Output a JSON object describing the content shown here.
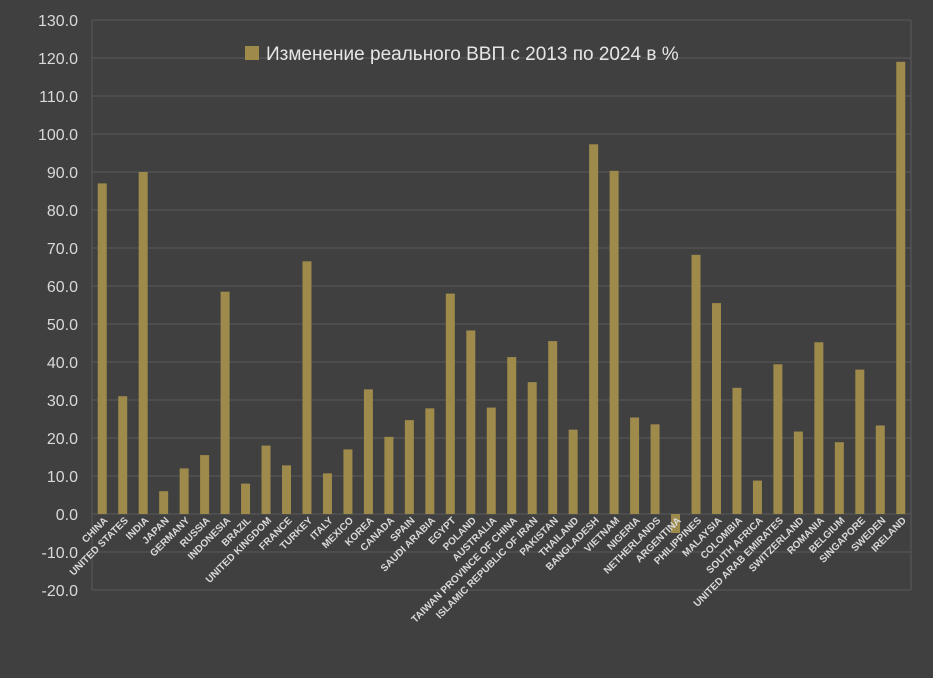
{
  "chart_data": {
    "type": "bar",
    "title": "",
    "xlabel": "",
    "ylabel": "",
    "ylim": [
      -20,
      130
    ],
    "ytick_step": 10,
    "ytick_labels": [
      "-20.0",
      "-10.0",
      "0.0",
      "10.0",
      "20.0",
      "30.0",
      "40.0",
      "50.0",
      "60.0",
      "70.0",
      "80.0",
      "90.0",
      "100.0",
      "110.0",
      "120.0",
      "130.0"
    ],
    "grid": true,
    "legend_position": "top-center",
    "bar_color": "#9e8a4a",
    "background_color": "#404040",
    "grid_color": "#5a5a5a",
    "text_color": "#d9d9d9",
    "categories": [
      "CHINA",
      "UNITED STATES",
      "INDIA",
      "JAPAN",
      "GERMANY",
      "RUSSIA",
      "INDONESIA",
      "BRAZIL",
      "UNITED KINGDOM",
      "FRANCE",
      "TURKEY",
      "ITALY",
      "MEXICO",
      "KOREA",
      "CANADA",
      "SPAIN",
      "SAUDI ARABIA",
      "EGYPT",
      "POLAND",
      "AUSTRALIA",
      "TAIWAN PROVINCE OF CHINA",
      "ISLAMIC REPUBLIC OF IRAN",
      "PAKISTAN",
      "THAILAND",
      "BANGLADESH",
      "VIETNAM",
      "NIGERIA",
      "NETHERLANDS",
      "ARGENTINA",
      "PHILIPPINES",
      "MALAYSIA",
      "COLOMBIA",
      "SOUTH AFRICA",
      "UNITED ARAB EMIRATES",
      "SWITZERLAND",
      "ROMANIA",
      "BELGIUM",
      "SINGAPORE",
      "SWEDEN",
      "IRELAND"
    ],
    "series": [
      {
        "name": "Изменение реального ВВП с 2013 по 2024 в %",
        "values": [
          87.0,
          31.0,
          90.0,
          6.0,
          12.0,
          15.5,
          58.5,
          8.0,
          18.0,
          12.8,
          66.5,
          10.7,
          17.0,
          32.8,
          20.3,
          24.7,
          27.8,
          58.0,
          48.3,
          28.0,
          41.3,
          34.7,
          45.5,
          22.2,
          97.3,
          90.3,
          25.4,
          23.6,
          -5.0,
          68.2,
          55.5,
          33.2,
          8.8,
          39.4,
          21.7,
          45.2,
          18.9,
          38.0,
          23.3,
          119.0
        ]
      }
    ]
  }
}
